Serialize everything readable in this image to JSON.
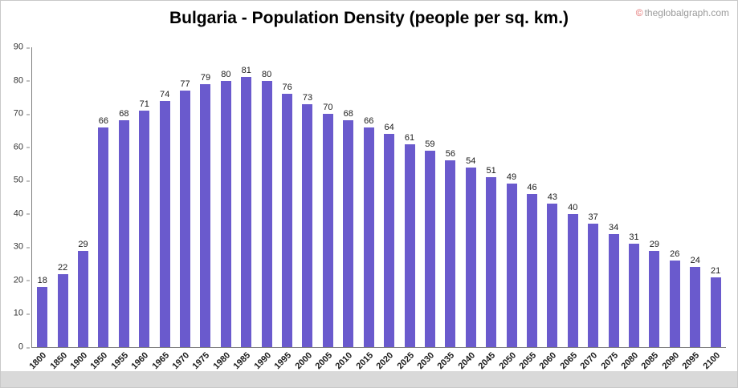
{
  "watermark": {
    "symbol": "©",
    "text": "theglobalgraph.com"
  },
  "chart_data": {
    "type": "bar",
    "title": "Bulgaria - Population Density (people per sq. km.)",
    "categories": [
      "1800",
      "1850",
      "1900",
      "1950",
      "1955",
      "1960",
      "1965",
      "1970",
      "1975",
      "1980",
      "1985",
      "1990",
      "1995",
      "2000",
      "2005",
      "2010",
      "2015",
      "2020",
      "2025",
      "2030",
      "2035",
      "2040",
      "2045",
      "2050",
      "2055",
      "2060",
      "2065",
      "2070",
      "2075",
      "2080",
      "2085",
      "2090",
      "2095",
      "2100"
    ],
    "values": [
      18,
      22,
      29,
      66,
      68,
      71,
      74,
      77,
      79,
      80,
      81,
      80,
      76,
      73,
      70,
      68,
      66,
      64,
      61,
      59,
      56,
      54,
      51,
      49,
      46,
      43,
      40,
      37,
      34,
      31,
      29,
      26,
      24,
      21
    ],
    "xlabel": "",
    "ylabel": "",
    "ylim": [
      0,
      90
    ],
    "yticks": [
      0,
      10,
      20,
      30,
      40,
      50,
      60,
      70,
      80,
      90
    ],
    "bar_color": "#6A5ACD",
    "grid": false,
    "legend": "none",
    "value_labels": true
  }
}
